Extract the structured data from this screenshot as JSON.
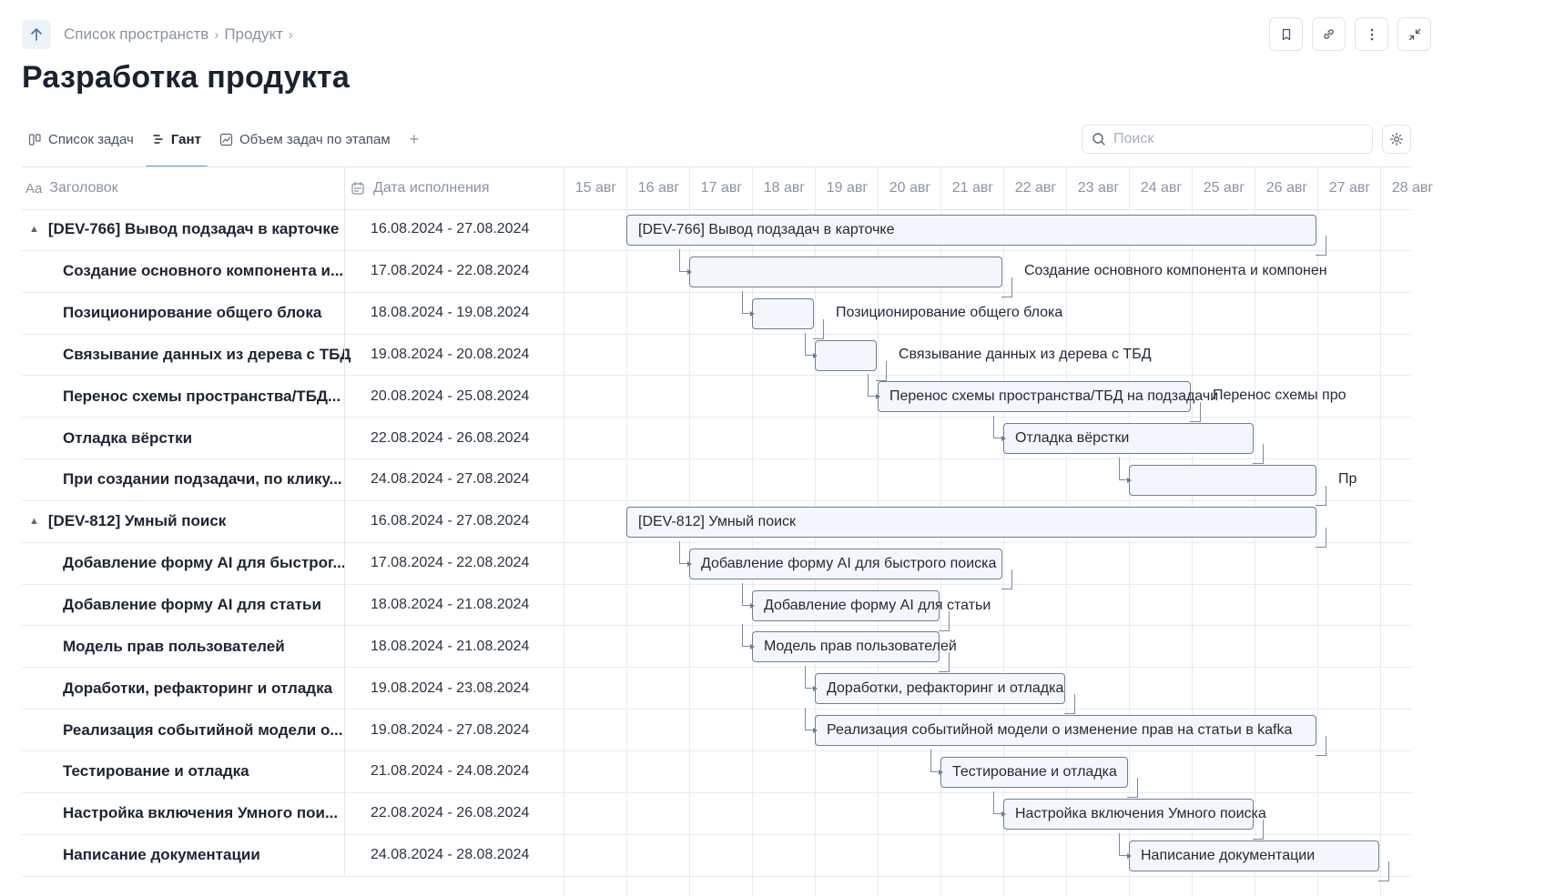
{
  "breadcrumb": {
    "items": [
      "Список пространств",
      "Продукт"
    ]
  },
  "page_title": "Разработка продукта",
  "tabs": [
    {
      "label": "Список задач",
      "icon": "board-icon",
      "active": false
    },
    {
      "label": "Гант",
      "icon": "gantt-icon",
      "active": true
    },
    {
      "label": "Объем задач по этапам",
      "icon": "chart-icon",
      "active": false
    }
  ],
  "search": {
    "placeholder": "Поиск",
    "value": ""
  },
  "columns": {
    "title": "Заголовок",
    "date": "Дата исполнения"
  },
  "days": [
    "15 авг",
    "16 авг",
    "17 авг",
    "18 авг",
    "19 авг",
    "20 авг",
    "21 авг",
    "22 авг",
    "23 авг",
    "24 авг",
    "25 авг",
    "26 авг",
    "27 авг",
    "28 авг"
  ],
  "tasks": [
    {
      "title": "[DEV-766] Вывод подзадач в карточке",
      "dates": "16.08.2024 - 27.08.2024",
      "parent": true,
      "bar_label": "[DEV-766] Вывод подзадач в карточке"
    },
    {
      "title": "Создание основного компонента и...",
      "dates": "17.08.2024 - 22.08.2024",
      "parent": false,
      "ext_label": "Создание основного компонента и компонен"
    },
    {
      "title": "Позиционирование общего блока",
      "dates": "18.08.2024 - 19.08.2024",
      "parent": false,
      "ext_label": "Позиционирование общего блока"
    },
    {
      "title": "Связывание данных из дерева с ТБД",
      "dates": "19.08.2024 - 20.08.2024",
      "parent": false,
      "ext_label": "Связывание данных из дерева с ТБД"
    },
    {
      "title": "Перенос схемы пространства/ТБД...",
      "dates": "20.08.2024 - 25.08.2024",
      "parent": false,
      "bar_label": "Перенос схемы пространства/ТБД на подзадачи",
      "ext_label": "Перенос схемы про"
    },
    {
      "title": "Отладка вёрстки",
      "dates": "22.08.2024 - 26.08.2024",
      "parent": false,
      "bar_label": "Отладка вёрстки"
    },
    {
      "title": "При создании подзадачи, по клику...",
      "dates": "24.08.2024 - 27.08.2024",
      "parent": false,
      "ext_label": "Пр"
    },
    {
      "title": "[DEV-812] Умный поиск",
      "dates": "16.08.2024 - 27.08.2024",
      "parent": true,
      "bar_label": "[DEV-812] Умный поиск"
    },
    {
      "title": "Добавление форму AI для быстрог...",
      "dates": "17.08.2024 - 22.08.2024",
      "parent": false,
      "bar_label": "Добавление форму AI для быстрого поиска"
    },
    {
      "title": "Добавление форму AI для статьи",
      "dates": "18.08.2024 - 21.08.2024",
      "parent": false,
      "bar_label": "Добавление форму AI для статьи"
    },
    {
      "title": "Модель прав пользователей",
      "dates": "18.08.2024 - 21.08.2024",
      "parent": false,
      "bar_label": "Модель прав пользователей"
    },
    {
      "title": "Доработки, рефакторинг и отладка",
      "dates": "19.08.2024 - 23.08.2024",
      "parent": false,
      "bar_label": "Доработки, рефакторинг и отладка"
    },
    {
      "title": "Реализация событийной модели о...",
      "dates": "19.08.2024 - 27.08.2024",
      "parent": false,
      "bar_label": "Реализация событийной модели о изменение прав на статьи в kafka"
    },
    {
      "title": "Тестирование и отладка",
      "dates": "21.08.2024 - 24.08.2024",
      "parent": false,
      "bar_label": "Тестирование и отладка"
    },
    {
      "title": "Настройка включения Умного пои...",
      "dates": "22.08.2024 - 26.08.2024",
      "parent": false,
      "bar_label": "Настройка включения Умного поиска"
    },
    {
      "title": "Написание документации",
      "dates": "24.08.2024 - 28.08.2024",
      "parent": false,
      "bar_label": "Написание документации"
    }
  ]
}
